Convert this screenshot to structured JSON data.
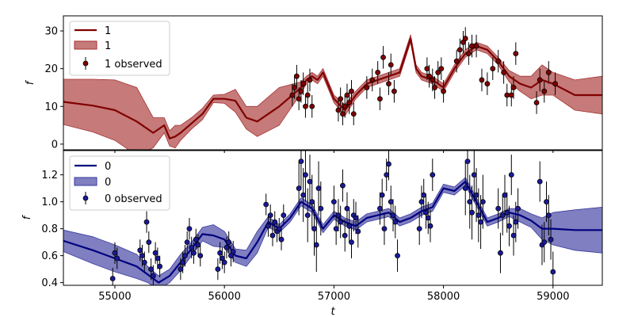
{
  "chart_data": [
    {
      "type": "line",
      "panel": "top",
      "xlabel": "",
      "ylabel": "f",
      "xlim": [
        54530,
        59450
      ],
      "ylim": [
        -1.5,
        34
      ],
      "x_ticks": [
        55000,
        56000,
        57000,
        58000,
        59000
      ],
      "y_ticks": [
        0,
        10,
        20,
        30
      ],
      "y_tick_labels": [
        "0",
        "10",
        "20",
        "30"
      ],
      "colors": {
        "line": "#800000",
        "band": "#a83232",
        "points": "#800000"
      },
      "legend": {
        "placement": "top-left",
        "entries": [
          "1",
          "1",
          "1 observed"
        ]
      },
      "model_x": [
        54530,
        54800,
        55000,
        55200,
        55350,
        55450,
        55500,
        55550,
        55600,
        55700,
        55800,
        55900,
        56000,
        56100,
        56200,
        56300,
        56500,
        56700,
        56750,
        56800,
        56850,
        56900,
        57000,
        57100,
        57200,
        57300,
        57400,
        57500,
        57600,
        57700,
        57750,
        57800,
        57900,
        58000,
        58100,
        58200,
        58300,
        58400,
        58500,
        58600,
        58700,
        58800,
        58900,
        59000,
        59200,
        59450
      ],
      "model_y": [
        11.2,
        10.2,
        9,
        6,
        3,
        5,
        1.5,
        2,
        3,
        5.5,
        8,
        12,
        12,
        11.5,
        7,
        6,
        10,
        15,
        17,
        18,
        17,
        19,
        12,
        9,
        13,
        16,
        17,
        18,
        19,
        28,
        20,
        18,
        17,
        15,
        20,
        24,
        26,
        25,
        22,
        18,
        16,
        15,
        17,
        16,
        13,
        13
      ],
      "band_width": [
        6,
        7,
        8,
        9,
        4,
        2,
        2,
        3,
        2,
        1.5,
        1.5,
        1,
        1.2,
        3,
        3,
        4,
        5,
        1.5,
        1,
        1,
        1,
        1,
        1,
        1.5,
        1,
        1,
        1,
        1,
        1,
        1,
        1,
        1,
        1,
        1,
        1,
        1,
        1,
        1,
        1,
        1.5,
        2,
        3,
        4,
        3,
        4,
        5
      ],
      "observed_x": [
        56620,
        56640,
        56660,
        56680,
        56700,
        56720,
        56740,
        56760,
        56780,
        56800,
        57040,
        57060,
        57080,
        57100,
        57120,
        57140,
        57160,
        57180,
        57300,
        57350,
        57400,
        57420,
        57450,
        57500,
        57520,
        57550,
        57850,
        57870,
        57900,
        57920,
        57950,
        57980,
        58000,
        58120,
        58150,
        58180,
        58200,
        58230,
        58260,
        58300,
        58350,
        58400,
        58450,
        58500,
        58550,
        58580,
        58620,
        58640,
        58660,
        58850,
        58880,
        58920,
        58960,
        59020
      ],
      "observed_y": [
        13,
        15,
        18,
        12,
        14,
        16,
        10,
        13,
        17,
        10,
        9,
        12,
        8,
        10,
        13,
        11,
        14,
        8,
        15,
        17,
        19,
        12,
        23,
        16,
        21,
        14,
        20,
        18,
        17,
        15,
        19,
        20,
        14,
        22,
        25,
        27,
        28,
        24,
        26,
        26,
        17,
        16,
        20,
        22,
        19,
        13,
        13,
        15,
        24,
        11,
        17,
        14,
        19,
        16
      ],
      "observed_err": [
        3,
        3,
        3,
        3,
        3,
        3,
        3,
        3,
        3,
        3,
        3,
        3,
        3,
        3,
        3,
        3,
        3,
        3,
        3,
        3,
        3,
        3,
        3,
        3,
        3,
        3,
        3,
        3,
        3,
        3,
        3,
        3,
        3,
        3,
        3,
        3,
        3,
        3,
        3,
        3,
        3,
        3,
        3,
        3,
        3,
        3,
        3,
        3,
        3,
        3,
        3,
        3,
        3,
        3
      ]
    },
    {
      "type": "line",
      "panel": "bottom",
      "xlabel": "t",
      "ylabel": "f",
      "xlim": [
        54530,
        59450
      ],
      "ylim": [
        0.38,
        1.38
      ],
      "x_ticks": [
        55000,
        56000,
        57000,
        58000,
        59000
      ],
      "y_ticks": [
        0.4,
        0.6,
        0.8,
        1.0,
        1.2
      ],
      "y_tick_labels": [
        "0.4",
        "0.6",
        "0.8",
        "1.0",
        "1.2"
      ],
      "colors": {
        "line": "#00007f",
        "band": "#3a3aa0",
        "points": "#1a1a9a"
      },
      "legend": {
        "placement": "top-left",
        "entries": [
          "0",
          "0",
          "0 observed"
        ]
      },
      "model_x": [
        54530,
        54800,
        55000,
        55200,
        55300,
        55400,
        55500,
        55600,
        55700,
        55800,
        55900,
        56000,
        56100,
        56200,
        56300,
        56400,
        56500,
        56600,
        56700,
        56800,
        56900,
        57000,
        57100,
        57200,
        57300,
        57400,
        57500,
        57600,
        57700,
        57800,
        57900,
        58000,
        58100,
        58200,
        58300,
        58400,
        58500,
        58600,
        58700,
        58800,
        58900,
        59000,
        59200,
        59450
      ],
      "model_y": [
        0.71,
        0.64,
        0.58,
        0.52,
        0.46,
        0.4,
        0.45,
        0.55,
        0.65,
        0.76,
        0.75,
        0.72,
        0.6,
        0.58,
        0.7,
        0.85,
        0.8,
        0.88,
        1.0,
        0.95,
        0.8,
        0.9,
        0.85,
        0.82,
        0.88,
        0.9,
        0.92,
        0.85,
        0.88,
        0.93,
        0.96,
        1.1,
        1.08,
        1.15,
        1.0,
        0.85,
        0.88,
        0.92,
        0.9,
        0.86,
        0.8,
        0.8,
        0.79,
        0.79
      ],
      "band_width": [
        0.08,
        0.1,
        0.1,
        0.09,
        0.06,
        0.05,
        0.05,
        0.06,
        0.05,
        0.05,
        0.08,
        0.06,
        0.05,
        0.06,
        0.08,
        0.04,
        0.03,
        0.03,
        0.03,
        0.03,
        0.03,
        0.03,
        0.03,
        0.03,
        0.03,
        0.03,
        0.03,
        0.03,
        0.03,
        0.03,
        0.03,
        0.03,
        0.03,
        0.03,
        0.03,
        0.03,
        0.03,
        0.03,
        0.05,
        0.05,
        0.08,
        0.12,
        0.15,
        0.17
      ],
      "observed_x": [
        54980,
        55000,
        55020,
        55230,
        55250,
        55270,
        55290,
        55310,
        55330,
        55350,
        55370,
        55390,
        55410,
        55600,
        55620,
        55640,
        55660,
        55680,
        55700,
        55720,
        55740,
        55760,
        55780,
        55940,
        55960,
        55980,
        56000,
        56020,
        56040,
        56060,
        56080,
        56380,
        56400,
        56420,
        56440,
        56460,
        56480,
        56500,
        56520,
        56540,
        56680,
        56700,
        56720,
        56740,
        56760,
        56780,
        56800,
        56820,
        56840,
        56860,
        56880,
        57000,
        57020,
        57040,
        57060,
        57080,
        57100,
        57120,
        57140,
        57160,
        57180,
        57200,
        57220,
        57420,
        57440,
        57460,
        57480,
        57500,
        57520,
        57540,
        57560,
        57580,
        57780,
        57800,
        57820,
        57840,
        57860,
        57880,
        57900,
        58200,
        58220,
        58240,
        58260,
        58280,
        58300,
        58320,
        58340,
        58360,
        58500,
        58520,
        58540,
        58560,
        58580,
        58600,
        58620,
        58640,
        58660,
        58680,
        58880,
        58900,
        58920,
        58940,
        58960,
        58980,
        59000
      ],
      "observed_y": [
        0.43,
        0.62,
        0.58,
        0.64,
        0.6,
        0.55,
        0.85,
        0.7,
        0.5,
        0.45,
        0.62,
        0.58,
        0.52,
        0.5,
        0.55,
        0.6,
        0.7,
        0.8,
        0.66,
        0.62,
        0.72,
        0.68,
        0.6,
        0.5,
        0.62,
        0.58,
        0.55,
        0.66,
        0.7,
        0.6,
        0.63,
        0.98,
        0.82,
        0.9,
        0.75,
        0.85,
        0.78,
        0.8,
        0.72,
        0.9,
        1.1,
        1.3,
        1.05,
        1.2,
        0.9,
        1.15,
        1.0,
        0.8,
        0.68,
        1.1,
        0.95,
        1.0,
        0.8,
        0.9,
        0.85,
        1.12,
        0.75,
        0.95,
        0.82,
        0.7,
        0.9,
        0.88,
        0.78,
        0.95,
        1.05,
        0.8,
        1.2,
        1.28,
        1.0,
        0.9,
        0.85,
        0.6,
        0.8,
        1.0,
        1.05,
        0.92,
        0.88,
        0.82,
        1.2,
        1.1,
        1.3,
        1.0,
        0.92,
        1.2,
        1.05,
        0.9,
        0.85,
        1.0,
        0.95,
        0.62,
        0.9,
        1.05,
        0.92,
        0.82,
        1.2,
        0.75,
        0.85,
        0.95,
        1.15,
        0.68,
        0.7,
        1.0,
        0.9,
        0.72,
        0.48
      ],
      "observed_err": [
        0.08,
        0.08,
        0.08,
        0.08,
        0.08,
        0.08,
        0.08,
        0.08,
        0.08,
        0.08,
        0.08,
        0.08,
        0.08,
        0.08,
        0.08,
        0.08,
        0.08,
        0.08,
        0.08,
        0.08,
        0.08,
        0.08,
        0.08,
        0.08,
        0.08,
        0.08,
        0.08,
        0.08,
        0.08,
        0.08,
        0.08,
        0.08,
        0.08,
        0.08,
        0.08,
        0.08,
        0.08,
        0.08,
        0.08,
        0.08,
        0.2,
        0.2,
        0.2,
        0.2,
        0.2,
        0.2,
        0.2,
        0.2,
        0.2,
        0.2,
        0.2,
        0.12,
        0.12,
        0.12,
        0.12,
        0.12,
        0.12,
        0.12,
        0.12,
        0.12,
        0.12,
        0.12,
        0.12,
        0.12,
        0.12,
        0.12,
        0.12,
        0.12,
        0.12,
        0.12,
        0.12,
        0.12,
        0.12,
        0.12,
        0.12,
        0.12,
        0.12,
        0.12,
        0.12,
        0.2,
        0.2,
        0.2,
        0.2,
        0.2,
        0.2,
        0.2,
        0.2,
        0.2,
        0.15,
        0.15,
        0.15,
        0.15,
        0.15,
        0.15,
        0.15,
        0.15,
        0.15,
        0.15,
        0.15,
        0.15,
        0.15,
        0.15,
        0.15,
        0.15,
        0.15
      ]
    }
  ]
}
